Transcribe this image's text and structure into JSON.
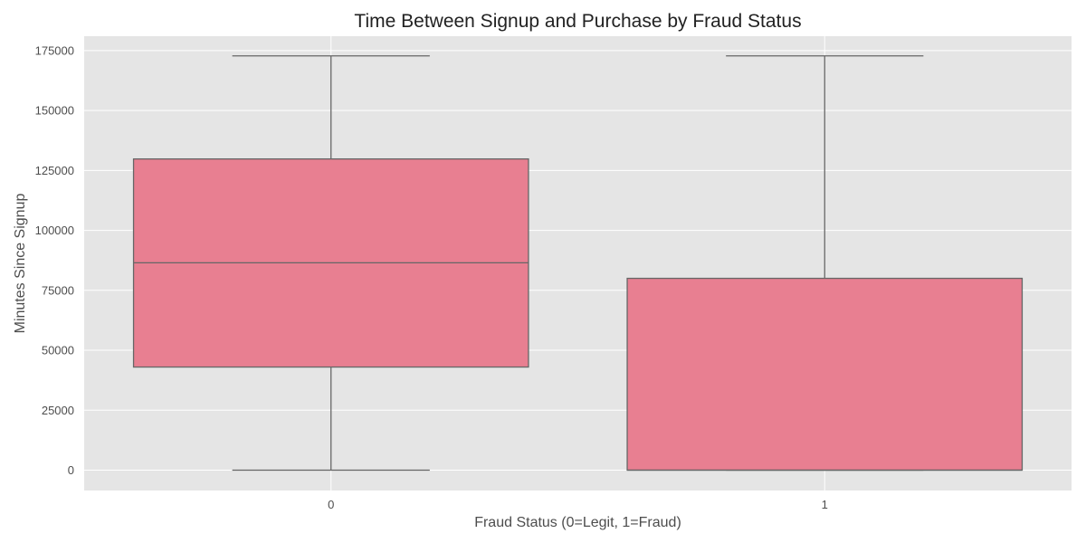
{
  "chart_data": {
    "type": "box",
    "title": "Time Between Signup and Purchase by Fraud Status",
    "xlabel": "Fraud Status (0=Legit, 1=Fraud)",
    "ylabel": "Minutes Since Signup",
    "categories": [
      "0",
      "1"
    ],
    "ylim": [
      -8500,
      181000
    ],
    "yticks": [
      0,
      25000,
      50000,
      75000,
      100000,
      125000,
      150000,
      175000
    ],
    "ytick_labels": [
      "0",
      "25000",
      "50000",
      "75000",
      "100000",
      "125000",
      "150000",
      "175000"
    ],
    "grid": true,
    "box_color": "#e87f91",
    "edge_color": "#666666",
    "plot_background": "#e5e5e5",
    "grid_color": "#ffffff",
    "boxes": [
      {
        "category": "0",
        "whisker_low": 0,
        "q1": 43000,
        "median": 86500,
        "q3": 129800,
        "whisker_high": 172800
      },
      {
        "category": "1",
        "whisker_low": 0,
        "q1": 0,
        "median": 0,
        "q3": 80000,
        "whisker_high": 172800
      }
    ]
  }
}
